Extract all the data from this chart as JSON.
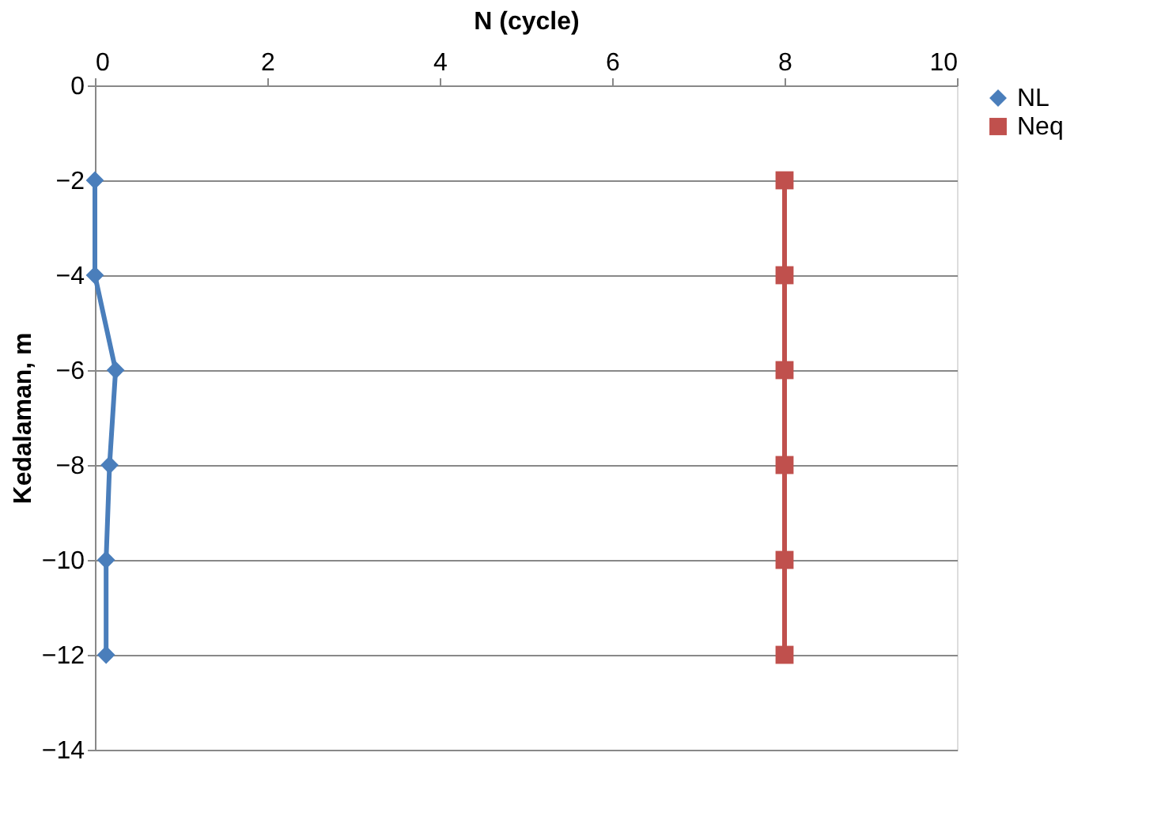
{
  "chart_data": {
    "type": "line",
    "xlabel": "N (cycle)",
    "ylabel": "Kedalaman, m",
    "xlim": [
      0,
      10
    ],
    "xticks": [
      0,
      2,
      4,
      6,
      8,
      10
    ],
    "ylim": [
      -14,
      0
    ],
    "yticks": [
      0,
      -2,
      -4,
      -6,
      -8,
      -10,
      -12,
      -14
    ],
    "grid": "y",
    "legend": "right",
    "series": [
      {
        "name": "NL",
        "color": "#4a7ebb",
        "marker": "diamond",
        "x": [
          0,
          0,
          0.24,
          0.17,
          0.13,
          0.13
        ],
        "values": [
          -2,
          -4,
          -6,
          -8,
          -10,
          -12
        ]
      },
      {
        "name": "Neq",
        "color": "#c0504d",
        "marker": "square",
        "x": [
          8,
          8,
          8,
          8,
          8,
          8
        ],
        "values": [
          -2,
          -4,
          -6,
          -8,
          -10,
          -12
        ]
      }
    ]
  }
}
